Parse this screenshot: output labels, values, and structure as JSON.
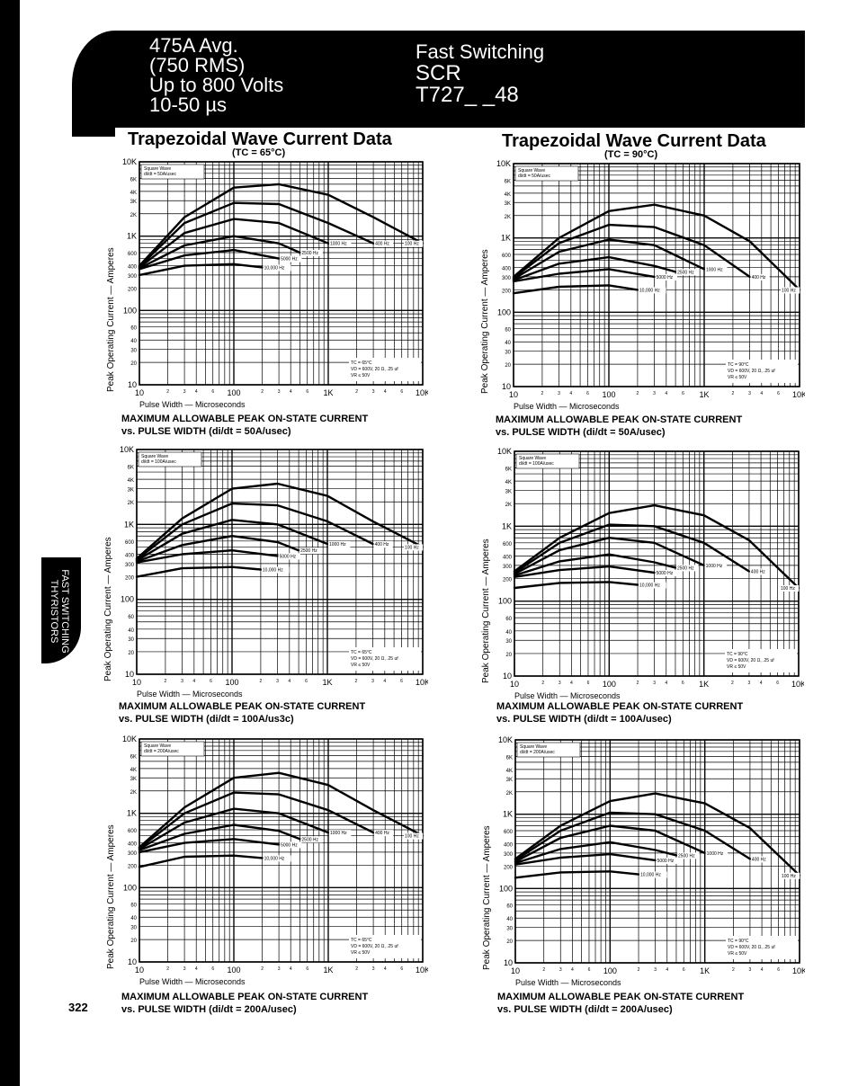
{
  "header": {
    "left_lines": [
      "475A Avg.",
      "(750 RMS)",
      "Up to 800 Volts",
      "10-50 µs"
    ],
    "right_lines": [
      "Fast Switching",
      "SCR",
      "T727_ _48"
    ]
  },
  "side_tab": {
    "line1": "FAST SWITCHING",
    "line2": "THYRISTORS"
  },
  "page_number": "322",
  "section_titles": {
    "left": {
      "title": "Trapezoidal Wave Current Data",
      "subtitle": "(TC = 65°C)"
    },
    "right": {
      "title": "Trapezoidal Wave Current Data",
      "subtitle": "(TC = 90°C)"
    }
  },
  "common": {
    "ylabel": "Peak Operating Current — Amperes",
    "xlabel": "Pulse Width — Microseconds",
    "y_ticks": [
      "10K",
      "6K",
      "4K",
      "3K",
      "2K",
      "1K",
      "600",
      "400",
      "300",
      "200",
      "100",
      "60",
      "40",
      "30",
      "20",
      "10"
    ],
    "x_ticks_major": [
      "10",
      "100",
      "1K",
      "10K"
    ],
    "x_ticks_minor": [
      "2",
      "3",
      "4",
      "6"
    ]
  },
  "chart_data": [
    {
      "type": "line",
      "caption": [
        "MAXIMUM ALLOWABLE PEAK ON-STATE CURRENT",
        "vs. PULSE WIDTH (di/dt = 50A/usec)"
      ],
      "legend_box": [
        "Square Wave",
        "di/dt = 50A/usec"
      ],
      "conditions": [
        "TC = 65°C",
        "VD = 600V, 20 Ω, .25 uf",
        "VR ≤ 50V"
      ],
      "xlim": [
        10,
        10000
      ],
      "ylim": [
        10,
        10000
      ],
      "xscale": "log",
      "yscale": "log",
      "series": [
        {
          "name": "100 Hz",
          "x": [
            10,
            30,
            100,
            300,
            1000,
            3000,
            10000
          ],
          "y": [
            400,
            1800,
            4500,
            5000,
            3600,
            1800,
            800
          ]
        },
        {
          "name": "400 Hz",
          "x": [
            10,
            30,
            100,
            300,
            1000,
            3000
          ],
          "y": [
            390,
            1500,
            2800,
            2700,
            1500,
            800
          ]
        },
        {
          "name": "1000 Hz",
          "x": [
            10,
            30,
            100,
            300,
            1000
          ],
          "y": [
            380,
            1100,
            1700,
            1500,
            800
          ]
        },
        {
          "name": "2500 Hz",
          "x": [
            10,
            30,
            100,
            300,
            500
          ],
          "y": [
            370,
            750,
            1000,
            800,
            600
          ]
        },
        {
          "name": "5000 Hz",
          "x": [
            10,
            30,
            100,
            300
          ],
          "y": [
            360,
            550,
            650,
            500
          ]
        },
        {
          "name": "10,000 Hz",
          "x": [
            10,
            30,
            100,
            200
          ],
          "y": [
            300,
            400,
            420,
            380
          ]
        }
      ]
    },
    {
      "type": "line",
      "caption": [
        "MAXIMUM ALLOWABLE PEAK ON-STATE CURRENT",
        "vs. PULSE WIDTH (di/dt = 50A/usec)"
      ],
      "legend_box": [
        "Square Wave",
        "di/dt = 50A/usec"
      ],
      "conditions": [
        "TC = 90°C",
        "VD = 600V, 20 Ω, .25 uf",
        "VR ≤ 50V"
      ],
      "xlim": [
        10,
        10000
      ],
      "ylim": [
        10,
        10000
      ],
      "xscale": "log",
      "yscale": "log",
      "series": [
        {
          "name": "100 Hz",
          "x": [
            10,
            30,
            100,
            300,
            1000,
            3000,
            10000
          ],
          "y": [
            300,
            1000,
            2300,
            2800,
            2000,
            900,
            200
          ]
        },
        {
          "name": "400 Hz",
          "x": [
            10,
            30,
            100,
            300,
            1000,
            3000
          ],
          "y": [
            290,
            850,
            1500,
            1400,
            800,
            300
          ]
        },
        {
          "name": "1000 Hz",
          "x": [
            10,
            30,
            100,
            300,
            1000
          ],
          "y": [
            280,
            650,
            950,
            800,
            380
          ]
        },
        {
          "name": "2500 Hz",
          "x": [
            10,
            30,
            100,
            300,
            500
          ],
          "y": [
            270,
            450,
            550,
            420,
            350
          ]
        },
        {
          "name": "5000 Hz",
          "x": [
            10,
            30,
            100,
            300
          ],
          "y": [
            260,
            330,
            380,
            300
          ]
        },
        {
          "name": "10,000 Hz",
          "x": [
            10,
            30,
            100,
            200
          ],
          "y": [
            180,
            220,
            230,
            200
          ]
        }
      ]
    },
    {
      "type": "line",
      "caption": [
        "MAXIMUM ALLOWABLE PEAK ON-STATE CURRENT",
        "vs. PULSE WIDTH (di/dt = 100A/us3c)"
      ],
      "legend_box": [
        "Square Wave",
        "di/dt = 100A/usec"
      ],
      "conditions": [
        "TC = 65°C",
        "VD = 600V, 20 Ω, .25 uf",
        "VR ≤ 50V"
      ],
      "xlim": [
        10,
        10000
      ],
      "ylim": [
        10,
        10000
      ],
      "xscale": "log",
      "yscale": "log",
      "series": [
        {
          "name": "100 Hz",
          "x": [
            10,
            30,
            100,
            300,
            1000,
            3000,
            10000
          ],
          "y": [
            350,
            1200,
            3000,
            3500,
            2400,
            1100,
            500
          ]
        },
        {
          "name": "400 Hz",
          "x": [
            10,
            30,
            100,
            300,
            1000,
            3000
          ],
          "y": [
            340,
            1000,
            1900,
            1800,
            1100,
            550
          ]
        },
        {
          "name": "1000 Hz",
          "x": [
            10,
            30,
            100,
            300,
            1000
          ],
          "y": [
            330,
            750,
            1150,
            1000,
            550
          ]
        },
        {
          "name": "2500 Hz",
          "x": [
            10,
            30,
            100,
            300,
            500
          ],
          "y": [
            320,
            530,
            700,
            580,
            450
          ]
        },
        {
          "name": "5000 Hz",
          "x": [
            10,
            30,
            100,
            300
          ],
          "y": [
            310,
            400,
            450,
            380
          ]
        },
        {
          "name": "10,000 Hz",
          "x": [
            10,
            30,
            100,
            200
          ],
          "y": [
            200,
            260,
            270,
            250
          ]
        }
      ]
    },
    {
      "type": "line",
      "caption": [
        "MAXIMUM ALLOWABLE PEAK ON-STATE CURRENT",
        "vs. PULSE WIDTH (di/dt = 100A/usec)"
      ],
      "legend_box": [
        "Square Wave",
        "di/dt = 100A/usec"
      ],
      "conditions": [
        "TC = 90°C",
        "VD = 600V, 20 Ω, .25 uf",
        "VR ≤ 50V"
      ],
      "xlim": [
        10,
        10000
      ],
      "ylim": [
        10,
        10000
      ],
      "xscale": "log",
      "yscale": "log",
      "series": [
        {
          "name": "100 Hz",
          "x": [
            10,
            30,
            100,
            300,
            1000,
            3000,
            10000
          ],
          "y": [
            250,
            700,
            1500,
            1900,
            1400,
            650,
            150
          ]
        },
        {
          "name": "400 Hz",
          "x": [
            10,
            30,
            100,
            300,
            1000,
            3000
          ],
          "y": [
            240,
            600,
            1050,
            1000,
            600,
            250
          ]
        },
        {
          "name": "1000 Hz",
          "x": [
            10,
            30,
            100,
            300,
            1000
          ],
          "y": [
            230,
            480,
            700,
            600,
            300
          ]
        },
        {
          "name": "2500 Hz",
          "x": [
            10,
            30,
            100,
            300,
            500
          ],
          "y": [
            220,
            340,
            420,
            330,
            280
          ]
        },
        {
          "name": "5000 Hz",
          "x": [
            10,
            30,
            100,
            300
          ],
          "y": [
            210,
            260,
            290,
            240
          ]
        },
        {
          "name": "10,000 Hz",
          "x": [
            10,
            30,
            100,
            200
          ],
          "y": [
            150,
            175,
            180,
            165
          ]
        }
      ]
    },
    {
      "type": "line",
      "caption": [
        "MAXIMUM ALLOWABLE PEAK ON-STATE CURRENT",
        "vs. PULSE WIDTH (di/dt = 200A/usec)"
      ],
      "legend_box": [
        "Square Wave",
        "di/dt = 200A/usec"
      ],
      "conditions": [
        "TC = 65°C",
        "VD = 600V, 20 Ω, .25 uf",
        "VR ≤ 50V"
      ],
      "xlim": [
        10,
        10000
      ],
      "ylim": [
        10,
        10000
      ],
      "xscale": "log",
      "yscale": "log",
      "series": [
        {
          "name": "100 Hz",
          "x": [
            10,
            30,
            100,
            300,
            1000,
            3000,
            10000
          ],
          "y": [
            350,
            1200,
            3000,
            3500,
            2400,
            1100,
            500
          ]
        },
        {
          "name": "400 Hz",
          "x": [
            10,
            30,
            100,
            300,
            1000,
            3000
          ],
          "y": [
            340,
            1000,
            1900,
            1800,
            1100,
            550
          ]
        },
        {
          "name": "1000 Hz",
          "x": [
            10,
            30,
            100,
            300,
            1000
          ],
          "y": [
            330,
            750,
            1150,
            1000,
            550
          ]
        },
        {
          "name": "2500 Hz",
          "x": [
            10,
            30,
            100,
            300,
            500
          ],
          "y": [
            320,
            530,
            700,
            580,
            450
          ]
        },
        {
          "name": "5000 Hz",
          "x": [
            10,
            30,
            100,
            300
          ],
          "y": [
            300,
            400,
            450,
            380
          ]
        },
        {
          "name": "10,000 Hz",
          "x": [
            10,
            30,
            100,
            200
          ],
          "y": [
            190,
            260,
            270,
            250
          ]
        }
      ]
    },
    {
      "type": "line",
      "caption": [
        "MAXIMUM ALLOWABLE PEAK ON-STATE CURRENT",
        "vs. PULSE WIDTH (di/dt = 200A/usec)"
      ],
      "legend_box": [
        "Square Wave",
        "di/dt = 200A/usec"
      ],
      "conditions": [
        "TC = 90°C",
        "VD = 600V, 20 Ω, .25 uf",
        "VR ≤ 50V"
      ],
      "xlim": [
        10,
        10000
      ],
      "ylim": [
        10,
        10000
      ],
      "xscale": "log",
      "yscale": "log",
      "series": [
        {
          "name": "100 Hz",
          "x": [
            10,
            30,
            100,
            300,
            1000,
            3000,
            10000
          ],
          "y": [
            250,
            700,
            1500,
            1900,
            1400,
            650,
            150
          ]
        },
        {
          "name": "400 Hz",
          "x": [
            10,
            30,
            100,
            300,
            1000,
            3000
          ],
          "y": [
            240,
            600,
            1050,
            1000,
            600,
            250
          ]
        },
        {
          "name": "1000 Hz",
          "x": [
            10,
            30,
            100,
            300,
            1000
          ],
          "y": [
            230,
            480,
            700,
            600,
            300
          ]
        },
        {
          "name": "2500 Hz",
          "x": [
            10,
            30,
            100,
            300,
            500
          ],
          "y": [
            220,
            340,
            420,
            330,
            280
          ]
        },
        {
          "name": "5000 Hz",
          "x": [
            10,
            30,
            100,
            300
          ],
          "y": [
            210,
            260,
            290,
            240
          ]
        },
        {
          "name": "10,000 Hz",
          "x": [
            10,
            30,
            100,
            200
          ],
          "y": [
            140,
            165,
            170,
            155
          ]
        }
      ]
    }
  ]
}
